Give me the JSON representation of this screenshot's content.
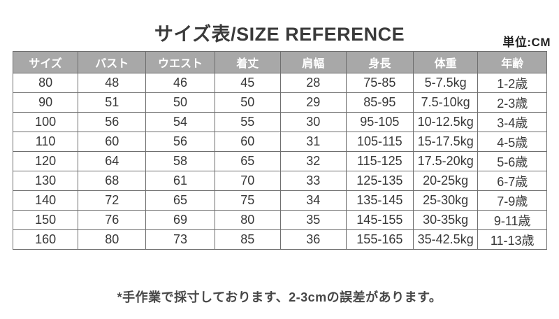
{
  "page": {
    "title_jp": "サイズ表",
    "title_en": "/SIZE REFERENCE",
    "unit_label": "単位:CM",
    "footnote": "*手作業で採寸しております、2-3cmの誤差があります。"
  },
  "table": {
    "headers": [
      "サイズ",
      "バスト",
      "ウエスト",
      "着丈",
      "肩幅",
      "身長",
      "体重",
      "年齢"
    ],
    "rows": [
      [
        "80",
        "48",
        "46",
        "45",
        "28",
        "75-85",
        "5-7.5kg",
        "1-2歳"
      ],
      [
        "90",
        "51",
        "50",
        "50",
        "29",
        "85-95",
        "7.5-10kg",
        "2-3歳"
      ],
      [
        "100",
        "56",
        "54",
        "55",
        "30",
        "95-105",
        "10-12.5kg",
        "3-4歳"
      ],
      [
        "110",
        "60",
        "56",
        "60",
        "31",
        "105-115",
        "15-17.5kg",
        "4-5歳"
      ],
      [
        "120",
        "64",
        "58",
        "65",
        "32",
        "115-125",
        "17.5-20kg",
        "5-6歳"
      ],
      [
        "130",
        "68",
        "61",
        "70",
        "33",
        "125-135",
        "20-25kg",
        "6-7歳"
      ],
      [
        "140",
        "72",
        "65",
        "75",
        "34",
        "135-145",
        "25-30kg",
        "7-9歳"
      ],
      [
        "150",
        "76",
        "69",
        "80",
        "35",
        "145-155",
        "30-35kg",
        "9-11歳"
      ],
      [
        "160",
        "80",
        "73",
        "85",
        "36",
        "155-165",
        "35-42.5kg",
        "11-13歳"
      ]
    ]
  },
  "colors": {
    "header_bg": "#a8a8a8",
    "header_text": "#ffffff",
    "border": "#6e6e6e",
    "body_text": "#383838",
    "title_text": "#3a3a3a"
  }
}
